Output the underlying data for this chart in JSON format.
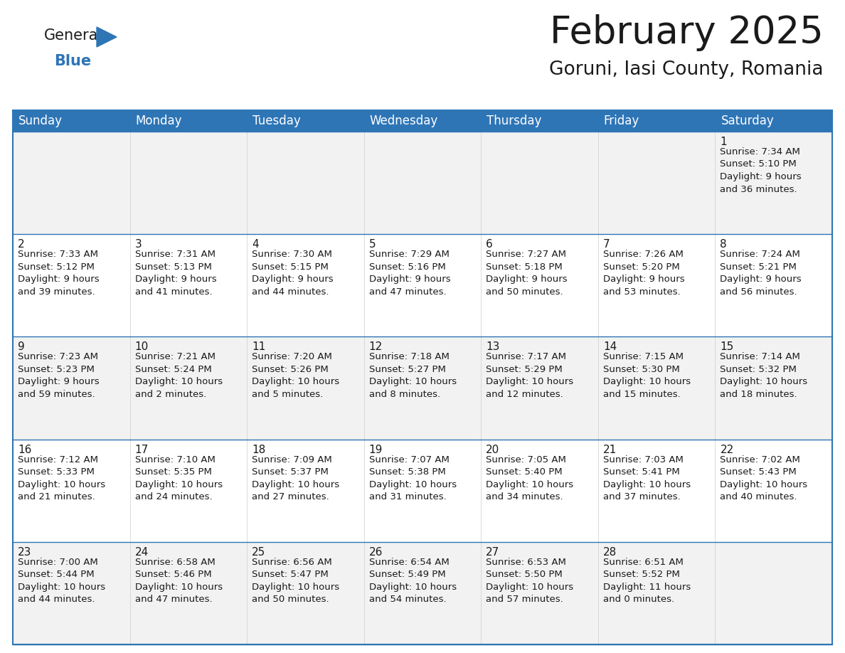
{
  "title": "February 2025",
  "subtitle": "Goruni, Iasi County, Romania",
  "header_color": "#2E75B6",
  "header_text_color": "#FFFFFF",
  "cell_bg_even": "#FFFFFF",
  "cell_bg_odd": "#F2F2F2",
  "border_color": "#2E75B6",
  "text_color": "#1a1a1a",
  "day_number_color": "#1a1a1a",
  "days_of_week": [
    "Sunday",
    "Monday",
    "Tuesday",
    "Wednesday",
    "Thursday",
    "Friday",
    "Saturday"
  ],
  "weeks": [
    [
      {
        "day": "",
        "info": ""
      },
      {
        "day": "",
        "info": ""
      },
      {
        "day": "",
        "info": ""
      },
      {
        "day": "",
        "info": ""
      },
      {
        "day": "",
        "info": ""
      },
      {
        "day": "",
        "info": ""
      },
      {
        "day": "1",
        "info": "Sunrise: 7:34 AM\nSunset: 5:10 PM\nDaylight: 9 hours\nand 36 minutes."
      }
    ],
    [
      {
        "day": "2",
        "info": "Sunrise: 7:33 AM\nSunset: 5:12 PM\nDaylight: 9 hours\nand 39 minutes."
      },
      {
        "day": "3",
        "info": "Sunrise: 7:31 AM\nSunset: 5:13 PM\nDaylight: 9 hours\nand 41 minutes."
      },
      {
        "day": "4",
        "info": "Sunrise: 7:30 AM\nSunset: 5:15 PM\nDaylight: 9 hours\nand 44 minutes."
      },
      {
        "day": "5",
        "info": "Sunrise: 7:29 AM\nSunset: 5:16 PM\nDaylight: 9 hours\nand 47 minutes."
      },
      {
        "day": "6",
        "info": "Sunrise: 7:27 AM\nSunset: 5:18 PM\nDaylight: 9 hours\nand 50 minutes."
      },
      {
        "day": "7",
        "info": "Sunrise: 7:26 AM\nSunset: 5:20 PM\nDaylight: 9 hours\nand 53 minutes."
      },
      {
        "day": "8",
        "info": "Sunrise: 7:24 AM\nSunset: 5:21 PM\nDaylight: 9 hours\nand 56 minutes."
      }
    ],
    [
      {
        "day": "9",
        "info": "Sunrise: 7:23 AM\nSunset: 5:23 PM\nDaylight: 9 hours\nand 59 minutes."
      },
      {
        "day": "10",
        "info": "Sunrise: 7:21 AM\nSunset: 5:24 PM\nDaylight: 10 hours\nand 2 minutes."
      },
      {
        "day": "11",
        "info": "Sunrise: 7:20 AM\nSunset: 5:26 PM\nDaylight: 10 hours\nand 5 minutes."
      },
      {
        "day": "12",
        "info": "Sunrise: 7:18 AM\nSunset: 5:27 PM\nDaylight: 10 hours\nand 8 minutes."
      },
      {
        "day": "13",
        "info": "Sunrise: 7:17 AM\nSunset: 5:29 PM\nDaylight: 10 hours\nand 12 minutes."
      },
      {
        "day": "14",
        "info": "Sunrise: 7:15 AM\nSunset: 5:30 PM\nDaylight: 10 hours\nand 15 minutes."
      },
      {
        "day": "15",
        "info": "Sunrise: 7:14 AM\nSunset: 5:32 PM\nDaylight: 10 hours\nand 18 minutes."
      }
    ],
    [
      {
        "day": "16",
        "info": "Sunrise: 7:12 AM\nSunset: 5:33 PM\nDaylight: 10 hours\nand 21 minutes."
      },
      {
        "day": "17",
        "info": "Sunrise: 7:10 AM\nSunset: 5:35 PM\nDaylight: 10 hours\nand 24 minutes."
      },
      {
        "day": "18",
        "info": "Sunrise: 7:09 AM\nSunset: 5:37 PM\nDaylight: 10 hours\nand 27 minutes."
      },
      {
        "day": "19",
        "info": "Sunrise: 7:07 AM\nSunset: 5:38 PM\nDaylight: 10 hours\nand 31 minutes."
      },
      {
        "day": "20",
        "info": "Sunrise: 7:05 AM\nSunset: 5:40 PM\nDaylight: 10 hours\nand 34 minutes."
      },
      {
        "day": "21",
        "info": "Sunrise: 7:03 AM\nSunset: 5:41 PM\nDaylight: 10 hours\nand 37 minutes."
      },
      {
        "day": "22",
        "info": "Sunrise: 7:02 AM\nSunset: 5:43 PM\nDaylight: 10 hours\nand 40 minutes."
      }
    ],
    [
      {
        "day": "23",
        "info": "Sunrise: 7:00 AM\nSunset: 5:44 PM\nDaylight: 10 hours\nand 44 minutes."
      },
      {
        "day": "24",
        "info": "Sunrise: 6:58 AM\nSunset: 5:46 PM\nDaylight: 10 hours\nand 47 minutes."
      },
      {
        "day": "25",
        "info": "Sunrise: 6:56 AM\nSunset: 5:47 PM\nDaylight: 10 hours\nand 50 minutes."
      },
      {
        "day": "26",
        "info": "Sunrise: 6:54 AM\nSunset: 5:49 PM\nDaylight: 10 hours\nand 54 minutes."
      },
      {
        "day": "27",
        "info": "Sunrise: 6:53 AM\nSunset: 5:50 PM\nDaylight: 10 hours\nand 57 minutes."
      },
      {
        "day": "28",
        "info": "Sunrise: 6:51 AM\nSunset: 5:52 PM\nDaylight: 11 hours\nand 0 minutes."
      },
      {
        "day": "",
        "info": ""
      }
    ]
  ],
  "logo_general_color": "#1a1a1a",
  "logo_blue_color": "#2E75B6",
  "title_fontsize": 38,
  "subtitle_fontsize": 19,
  "header_fontsize": 12,
  "day_number_fontsize": 11,
  "info_fontsize": 9.5
}
